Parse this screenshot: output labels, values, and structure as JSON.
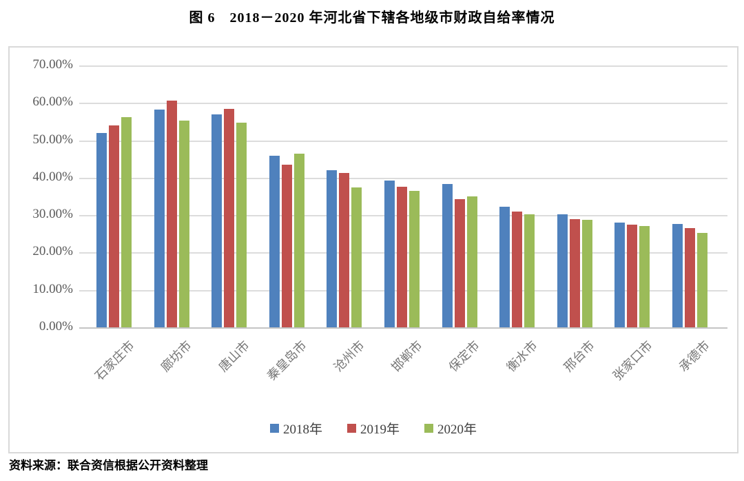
{
  "title": "图 6　2018－2020 年河北省下辖各地级市财政自给率情况",
  "source": "资料来源：联合资信根据公开资料整理",
  "chart_data": {
    "type": "bar",
    "title": "图 6　2018－2020 年河北省下辖各地级市财政自给率情况",
    "xlabel": "",
    "ylabel": "",
    "categories": [
      "石家庄市",
      "廊坊市",
      "唐山市",
      "秦皇岛市",
      "沧州市",
      "邯郸市",
      "保定市",
      "衡水市",
      "邢台市",
      "张家口市",
      "承德市"
    ],
    "series": [
      {
        "name": "2018年",
        "color": "#4f81bd",
        "values": [
          52.0,
          58.3,
          57.0,
          45.9,
          42.1,
          39.3,
          38.4,
          32.2,
          30.3,
          28.0,
          27.7
        ]
      },
      {
        "name": "2019年",
        "color": "#c0504d",
        "values": [
          54.0,
          60.7,
          58.4,
          43.4,
          41.2,
          37.6,
          34.3,
          31.0,
          29.0,
          27.5,
          26.6
        ]
      },
      {
        "name": "2020年",
        "color": "#9bbb59",
        "values": [
          56.2,
          55.2,
          54.7,
          46.5,
          37.4,
          36.4,
          35.0,
          30.3,
          28.7,
          27.0,
          25.3
        ]
      }
    ],
    "ylim": [
      0,
      70
    ],
    "ytick_step": 10,
    "yticks": [
      "70.00%",
      "60.00%",
      "50.00%",
      "40.00%",
      "30.00%",
      "20.00%",
      "10.00%",
      "0.00%"
    ],
    "grid": true,
    "legend_position": "bottom",
    "unit": "percent"
  },
  "colors": {
    "series_2018": "#4f81bd",
    "series_2019": "#c0504d",
    "series_2020": "#9bbb59",
    "gridline": "#dcdcdc",
    "axis_text": "#595959",
    "category_text": "#767676"
  }
}
